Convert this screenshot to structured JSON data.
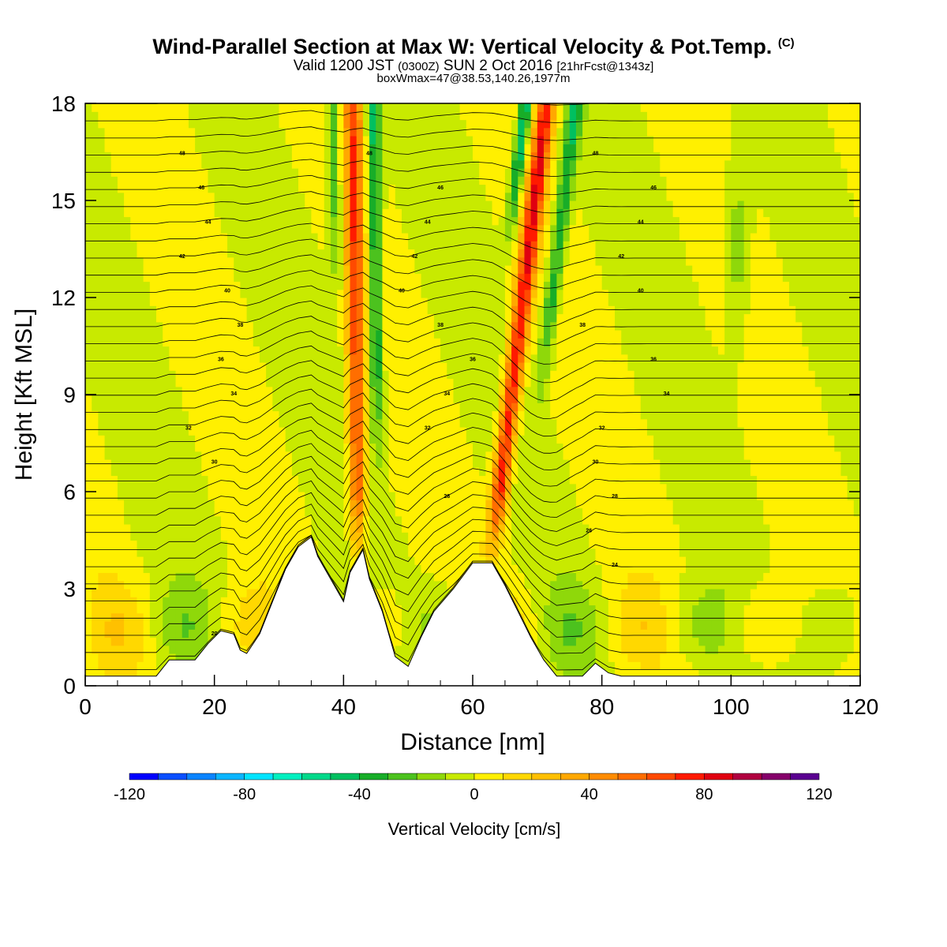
{
  "header": {
    "title": "Wind-Parallel Section at Max W: Vertical Velocity & Pot.Temp.",
    "title_units": "(C)",
    "valid_prefix": "Valid 1200 JST",
    "valid_utc": "(0300Z)",
    "valid_date": "SUN 2 Oct 2016",
    "forecast": "[21hrFcst@1343z]",
    "box_max": "boxWmax=47@38.53,140.26,1977m"
  },
  "chart_data": {
    "type": "heatmap",
    "xlabel": "Distance [nm]",
    "ylabel": "Height [Kft MSL]",
    "xlim": [
      0,
      120
    ],
    "ylim": [
      0,
      18
    ],
    "x_ticks": [
      "0",
      "20",
      "40",
      "60",
      "80",
      "100",
      "120"
    ],
    "y_ticks": [
      "0",
      "3",
      "6",
      "9",
      "12",
      "15",
      "18"
    ],
    "colorbar": {
      "label": "Vertical Velocity [cm/s]",
      "range": [
        -120,
        120
      ],
      "tick_labels": [
        "-120",
        "-80",
        "-40",
        "0",
        "40",
        "80",
        "120"
      ],
      "colors": [
        "#0000ff",
        "#0a4fff",
        "#0a84ff",
        "#0ab5ff",
        "#00e4ff",
        "#00f0c0",
        "#00d98a",
        "#00c060",
        "#18ad28",
        "#4cc21e",
        "#8fd80a",
        "#c8ea00",
        "#fff000",
        "#ffd800",
        "#ffc000",
        "#ffa800",
        "#ff8c00",
        "#ff6e00",
        "#ff4a00",
        "#ff1a00",
        "#e00010",
        "#b00040",
        "#85006a",
        "#5a0090"
      ]
    },
    "terrain_profile": [
      [
        0,
        0.3
      ],
      [
        11,
        0.3
      ],
      [
        13,
        0.8
      ],
      [
        17,
        0.8
      ],
      [
        19,
        1.3
      ],
      [
        21,
        1.7
      ],
      [
        23,
        1.6
      ],
      [
        24,
        1.1
      ],
      [
        25,
        1.0
      ],
      [
        27,
        1.6
      ],
      [
        29,
        2.6
      ],
      [
        31,
        3.6
      ],
      [
        33,
        4.3
      ],
      [
        35,
        4.6
      ],
      [
        36,
        4.0
      ],
      [
        38,
        3.3
      ],
      [
        40,
        2.6
      ],
      [
        41,
        3.5
      ],
      [
        43,
        4.2
      ],
      [
        44,
        3.3
      ],
      [
        46,
        2.3
      ],
      [
        47,
        1.6
      ],
      [
        48,
        0.9
      ],
      [
        50,
        0.6
      ],
      [
        52,
        1.5
      ],
      [
        54,
        2.3
      ],
      [
        57,
        3.0
      ],
      [
        60,
        3.8
      ],
      [
        63,
        3.8
      ],
      [
        65,
        3.1
      ],
      [
        67,
        2.3
      ],
      [
        69,
        1.5
      ],
      [
        71,
        0.8
      ],
      [
        73,
        0.3
      ],
      [
        77,
        0.3
      ],
      [
        79,
        0.7
      ],
      [
        81,
        0.4
      ],
      [
        83,
        0.3
      ],
      [
        120,
        0.3
      ]
    ],
    "contour_levels": [
      {
        "label": "20",
        "x": 20
      },
      {
        "label": "24",
        "x": 82
      },
      {
        "label": "26",
        "x": 78
      },
      {
        "label": "28",
        "x": 56
      },
      {
        "label": "28",
        "x": 82
      },
      {
        "label": "30",
        "x": 20
      },
      {
        "label": "30",
        "x": 79
      },
      {
        "label": "32",
        "x": 16
      },
      {
        "label": "32",
        "x": 53
      },
      {
        "label": "32",
        "x": 80
      },
      {
        "label": "34",
        "x": 23
      },
      {
        "label": "34",
        "x": 56
      },
      {
        "label": "34",
        "x": 90
      },
      {
        "label": "36",
        "x": 21
      },
      {
        "label": "36",
        "x": 60
      },
      {
        "label": "36",
        "x": 88
      },
      {
        "label": "38",
        "x": 24
      },
      {
        "label": "38",
        "x": 55
      },
      {
        "label": "38",
        "x": 77
      },
      {
        "label": "40",
        "x": 22
      },
      {
        "label": "40",
        "x": 49
      },
      {
        "label": "40",
        "x": 86
      },
      {
        "label": "42",
        "x": 15
      },
      {
        "label": "42",
        "x": 51
      },
      {
        "label": "42",
        "x": 83
      },
      {
        "label": "44",
        "x": 19
      },
      {
        "label": "44",
        "x": 53
      },
      {
        "label": "44",
        "x": 86
      },
      {
        "label": "46",
        "x": 18
      },
      {
        "label": "46",
        "x": 55
      },
      {
        "label": "46",
        "x": 88
      },
      {
        "label": "48",
        "x": 15
      },
      {
        "label": "48",
        "x": 44
      },
      {
        "label": "48",
        "x": 79
      }
    ]
  }
}
